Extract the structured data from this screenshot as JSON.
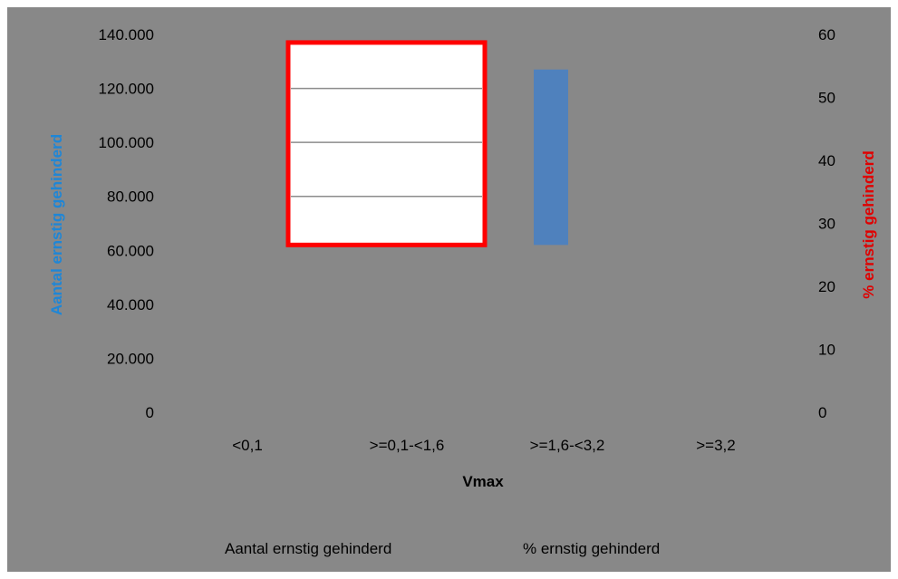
{
  "chart_data": {
    "type": "bar",
    "categories": [
      "<0,1",
      ">=0,1-<1,6",
      ">=1,6-<3,2",
      ">=3,2"
    ],
    "series": [
      {
        "name": "Aantal ernstig gehinderd",
        "axis": "left",
        "values": [
          null,
          127000,
          null,
          null
        ],
        "color": "#4f81bd"
      },
      {
        "name": "% ernstig gehinderd",
        "axis": "right",
        "values": [
          null,
          null,
          null,
          null
        ],
        "color": "#e00000"
      }
    ],
    "xlabel": "Vmax",
    "ylabel_left": "Aantal ernstig gehinderd",
    "ylabel_right": "% ernstig gehinderd",
    "ylim_left": [
      0,
      140000
    ],
    "ylim_right": [
      0,
      60
    ],
    "yticks_left": [
      "0",
      "20.000",
      "40.000",
      "60.000",
      "80.000",
      "100.000",
      "120.000",
      "140.000"
    ],
    "yticks_right": [
      "0",
      "10",
      "20",
      "30",
      "40",
      "50",
      "60"
    ],
    "highlight_box": {
      "y_range_left": [
        62000,
        137000
      ],
      "fill": "#ffffff",
      "border": "#ff0000"
    },
    "legend_position": "bottom",
    "colors": {
      "background": "#888888",
      "ylabel_left": "#1f86d6",
      "ylabel_right": "#e00000",
      "highlight_border": "#ff0000"
    }
  }
}
